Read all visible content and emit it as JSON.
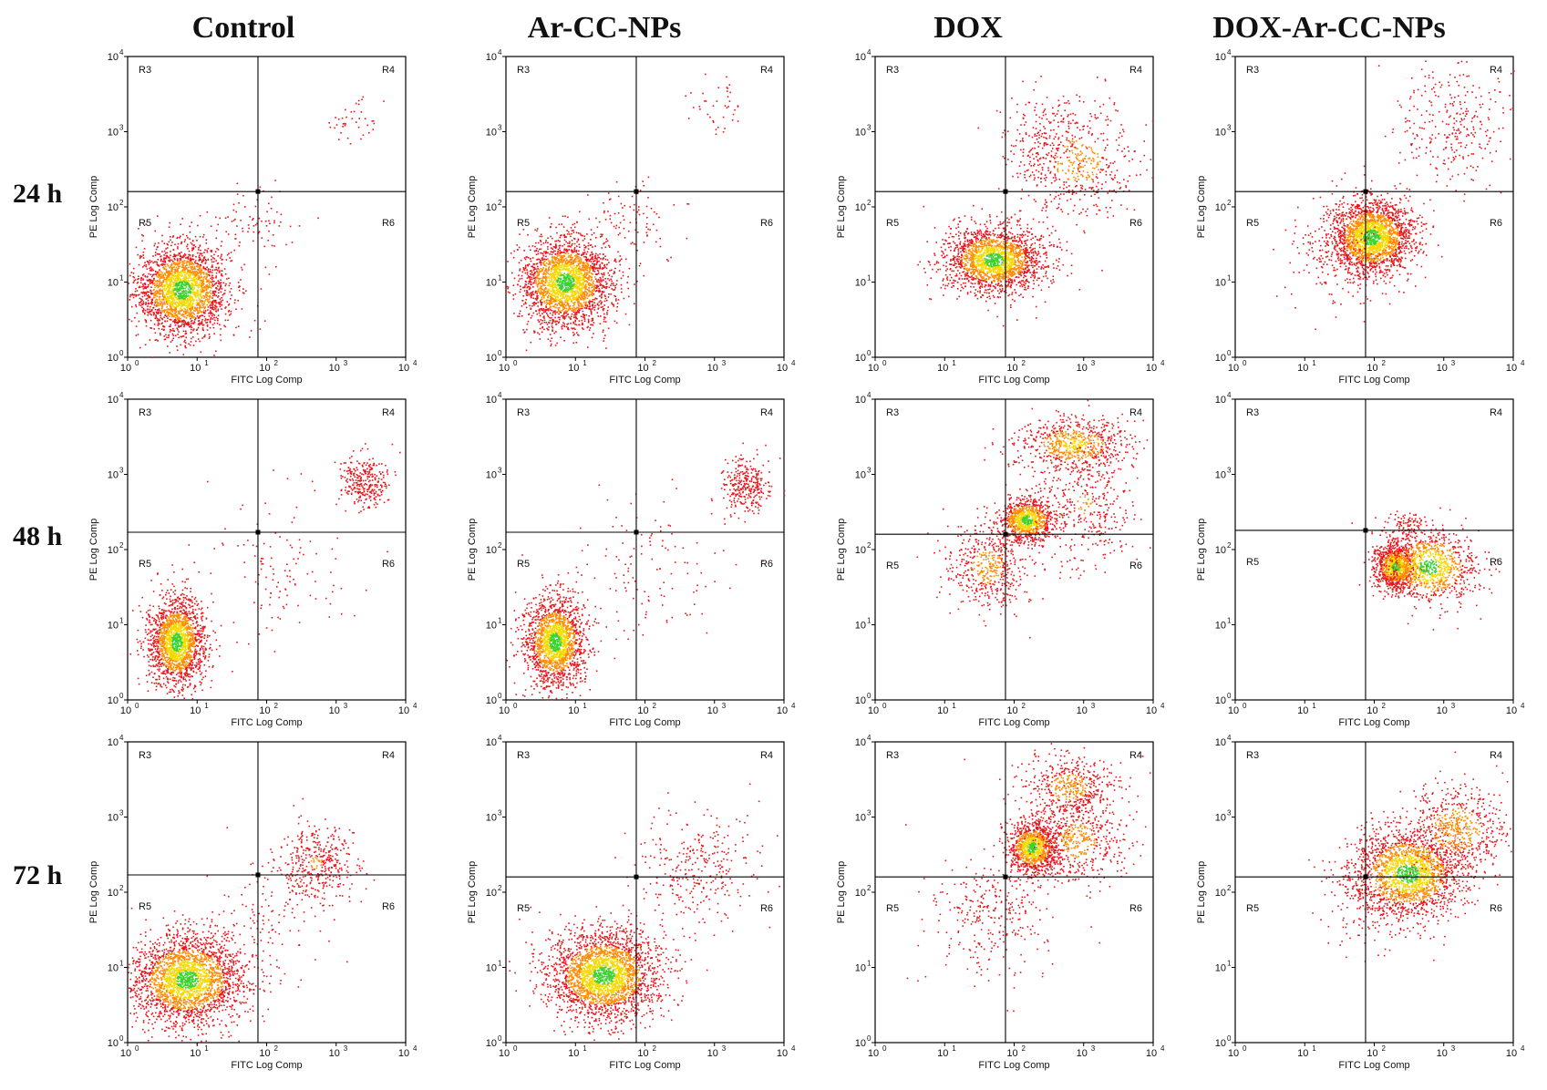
{
  "columns": [
    "Control",
    "Ar-CC-NPs",
    "DOX",
    "DOX-Ar-CC-NPs"
  ],
  "rows": [
    "24 h",
    "48 h",
    "72 h"
  ],
  "colors": {
    "low": "#e8141a",
    "mid": "#ff8a00",
    "high": "#f5d800",
    "peak": "#3bd230",
    "axis": "#000000"
  },
  "chart_data": [
    {
      "type": "scatter",
      "column": "Control",
      "row": "24 h",
      "xlabel": "FITC Log Comp",
      "ylabel": "PE Log Comp",
      "x_scale": "log",
      "y_scale": "log",
      "xlim": [
        1,
        10000
      ],
      "ylim": [
        1,
        10000
      ],
      "x_ticks": [
        "10",
        "10",
        "10",
        "10",
        "10"
      ],
      "x_tick_exponents": [
        "0",
        "1",
        "2",
        "3",
        "4"
      ],
      "y_ticks": [
        "10",
        "10",
        "10",
        "10",
        "10"
      ],
      "y_tick_exponents": [
        "0",
        "1",
        "2",
        "3",
        "4"
      ],
      "regions": [
        "R3",
        "R4",
        "R5",
        "R6"
      ],
      "quadrant_gate": {
        "x": 75,
        "y": 160
      },
      "clusters": [
        {
          "cx": 6,
          "cy": 8,
          "sx": 0.33,
          "sy": 0.3,
          "n": 2400
        },
        {
          "cx": 60,
          "cy": 60,
          "sx": 0.35,
          "sy": 0.25,
          "n": 80
        },
        {
          "cx": 1500,
          "cy": 1400,
          "sx": 0.2,
          "sy": 0.15,
          "n": 40
        }
      ]
    },
    {
      "type": "scatter",
      "column": "Ar-CC-NPs",
      "row": "24 h",
      "xlabel": "FITC Log Comp",
      "ylabel": "PE Log Comp",
      "x_scale": "log",
      "y_scale": "log",
      "xlim": [
        1,
        10000
      ],
      "ylim": [
        1,
        10000
      ],
      "x_ticks": [
        "10",
        "10",
        "10",
        "10",
        "10"
      ],
      "x_tick_exponents": [
        "0",
        "1",
        "2",
        "3",
        "4"
      ],
      "y_ticks": [
        "10",
        "10",
        "10",
        "10",
        "10"
      ],
      "y_tick_exponents": [
        "0",
        "1",
        "2",
        "3",
        "4"
      ],
      "regions": [
        "R3",
        "R4",
        "R5",
        "R6"
      ],
      "quadrant_gate": {
        "x": 75,
        "y": 160
      },
      "clusters": [
        {
          "cx": 7,
          "cy": 10,
          "sx": 0.33,
          "sy": 0.3,
          "n": 2400
        },
        {
          "cx": 60,
          "cy": 60,
          "sx": 0.35,
          "sy": 0.25,
          "n": 90
        },
        {
          "cx": 1200,
          "cy": 2000,
          "sx": 0.2,
          "sy": 0.2,
          "n": 40
        }
      ]
    },
    {
      "type": "scatter",
      "column": "DOX",
      "row": "24 h",
      "xlabel": "FITC Log Comp",
      "ylabel": "PE Log Comp",
      "x_scale": "log",
      "y_scale": "log",
      "xlim": [
        1,
        10000
      ],
      "ylim": [
        1,
        10000
      ],
      "x_ticks": [
        "10",
        "10",
        "10",
        "10",
        "10"
      ],
      "x_tick_exponents": [
        "0",
        "1",
        "2",
        "3",
        "4"
      ],
      "y_ticks": [
        "10",
        "10",
        "10",
        "10",
        "10"
      ],
      "y_tick_exponents": [
        "0",
        "1",
        "2",
        "3",
        "4"
      ],
      "regions": [
        "R3",
        "R4",
        "R5",
        "R6"
      ],
      "quadrant_gate": {
        "x": 75,
        "y": 160
      },
      "clusters": [
        {
          "cx": 50,
          "cy": 20,
          "sx": 0.35,
          "sy": 0.22,
          "n": 2000
        },
        {
          "cx": 800,
          "cy": 400,
          "sx": 0.45,
          "sy": 0.4,
          "n": 500
        },
        {
          "cx": 300,
          "cy": 800,
          "sx": 0.3,
          "sy": 0.3,
          "n": 150
        }
      ]
    },
    {
      "type": "scatter",
      "column": "DOX-Ar-CC-NPs",
      "row": "24 h",
      "xlabel": "FITC Log Comp",
      "ylabel": "PE Log Comp",
      "x_scale": "log",
      "y_scale": "log",
      "xlim": [
        1,
        10000
      ],
      "ylim": [
        1,
        10000
      ],
      "x_ticks": [
        "10",
        "10",
        "10",
        "10",
        "10"
      ],
      "x_tick_exponents": [
        "0",
        "1",
        "2",
        "3",
        "4"
      ],
      "y_ticks": [
        "10",
        "10",
        "10",
        "10",
        "10"
      ],
      "y_tick_exponents": [
        "0",
        "1",
        "2",
        "3",
        "4"
      ],
      "regions": [
        "R3",
        "R4",
        "R5",
        "R6"
      ],
      "quadrant_gate": {
        "x": 75,
        "y": 160
      },
      "clusters": [
        {
          "cx": 90,
          "cy": 40,
          "sx": 0.3,
          "sy": 0.25,
          "n": 2200
        },
        {
          "cx": 1500,
          "cy": 1200,
          "sx": 0.4,
          "sy": 0.4,
          "n": 300
        },
        {
          "cx": 30,
          "cy": 20,
          "sx": 0.4,
          "sy": 0.3,
          "n": 150
        }
      ]
    },
    {
      "type": "scatter",
      "column": "Control",
      "row": "48 h",
      "xlabel": "FITC Log Comp",
      "ylabel": "PE Log Comp",
      "x_scale": "log",
      "y_scale": "log",
      "xlim": [
        1,
        10000
      ],
      "ylim": [
        1,
        10000
      ],
      "x_ticks": [
        "10",
        "10",
        "10",
        "10",
        "10"
      ],
      "x_tick_exponents": [
        "0",
        "1",
        "2",
        "3",
        "4"
      ],
      "y_ticks": [
        "10",
        "10",
        "10",
        "10",
        "10"
      ],
      "y_tick_exponents": [
        "0",
        "1",
        "2",
        "3",
        "4"
      ],
      "regions": [
        "R3",
        "R4",
        "R5",
        "R6"
      ],
      "quadrant_gate": {
        "x": 75,
        "y": 170
      },
      "clusters": [
        {
          "cx": 5,
          "cy": 6,
          "sx": 0.2,
          "sy": 0.3,
          "n": 1800
        },
        {
          "cx": 2500,
          "cy": 800,
          "sx": 0.18,
          "sy": 0.18,
          "n": 300
        },
        {
          "cx": 150,
          "cy": 60,
          "sx": 0.5,
          "sy": 0.5,
          "n": 120
        }
      ]
    },
    {
      "type": "scatter",
      "column": "Ar-CC-NPs",
      "row": "48 h",
      "xlabel": "FITC Log Comp",
      "ylabel": "PE Log Comp",
      "x_scale": "log",
      "y_scale": "log",
      "xlim": [
        1,
        10000
      ],
      "ylim": [
        1,
        10000
      ],
      "x_ticks": [
        "10",
        "10",
        "10",
        "10",
        "10"
      ],
      "x_tick_exponents": [
        "0",
        "1",
        "2",
        "3",
        "4"
      ],
      "y_ticks": [
        "10",
        "10",
        "10",
        "10",
        "10"
      ],
      "y_tick_exponents": [
        "0",
        "1",
        "2",
        "3",
        "4"
      ],
      "regions": [
        "R3",
        "R4",
        "R5",
        "R6"
      ],
      "quadrant_gate": {
        "x": 75,
        "y": 170
      },
      "clusters": [
        {
          "cx": 5,
          "cy": 6,
          "sx": 0.22,
          "sy": 0.3,
          "n": 1800
        },
        {
          "cx": 2800,
          "cy": 700,
          "sx": 0.18,
          "sy": 0.18,
          "n": 300
        },
        {
          "cx": 150,
          "cy": 60,
          "sx": 0.5,
          "sy": 0.5,
          "n": 120
        }
      ]
    },
    {
      "type": "scatter",
      "column": "DOX",
      "row": "48 h",
      "xlabel": "FITC Log Comp",
      "ylabel": "PE Log Comp",
      "x_scale": "log",
      "y_scale": "log",
      "xlim": [
        1,
        10000
      ],
      "ylim": [
        1,
        10000
      ],
      "x_ticks": [
        "10",
        "10",
        "10",
        "10",
        "10"
      ],
      "x_tick_exponents": [
        "0",
        "1",
        "2",
        "3",
        "4"
      ],
      "y_ticks": [
        "10",
        "10",
        "10",
        "10",
        "10"
      ],
      "y_tick_exponents": [
        "0",
        "1",
        "2",
        "3",
        "4"
      ],
      "regions": [
        "R3",
        "R4",
        "R5",
        "R6"
      ],
      "quadrant_gate": {
        "x": 75,
        "y": 160
      },
      "clusters": [
        {
          "cx": 150,
          "cy": 250,
          "sx": 0.2,
          "sy": 0.15,
          "n": 900
        },
        {
          "cx": 700,
          "cy": 2500,
          "sx": 0.4,
          "sy": 0.18,
          "n": 700
        },
        {
          "cx": 40,
          "cy": 60,
          "sx": 0.3,
          "sy": 0.3,
          "n": 500
        },
        {
          "cx": 1000,
          "cy": 400,
          "sx": 0.4,
          "sy": 0.4,
          "n": 400
        }
      ]
    },
    {
      "type": "scatter",
      "column": "DOX-Ar-CC-NPs",
      "row": "48 h",
      "xlabel": "FITC Log Comp",
      "ylabel": "PE Log Comp",
      "x_scale": "log",
      "y_scale": "log",
      "xlim": [
        1,
        10000
      ],
      "ylim": [
        1,
        10000
      ],
      "x_ticks": [
        "10",
        "10",
        "10",
        "10",
        "10"
      ],
      "x_tick_exponents": [
        "0",
        "1",
        "2",
        "3",
        "4"
      ],
      "y_ticks": [
        "10",
        "10",
        "10",
        "10",
        "10"
      ],
      "y_tick_exponents": [
        "0",
        "1",
        "2",
        "3",
        "4"
      ],
      "regions": [
        "R3",
        "R4",
        "R5",
        "R6"
      ],
      "quadrant_gate": {
        "x": 75,
        "y": 180
      },
      "clusters": [
        {
          "cx": 200,
          "cy": 60,
          "sx": 0.15,
          "sy": 0.15,
          "n": 900
        },
        {
          "cx": 600,
          "cy": 60,
          "sx": 0.35,
          "sy": 0.25,
          "n": 1000
        },
        {
          "cx": 300,
          "cy": 220,
          "sx": 0.15,
          "sy": 0.1,
          "n": 80
        }
      ]
    },
    {
      "type": "scatter",
      "column": "Control",
      "row": "72 h",
      "xlabel": "FITC Log Comp",
      "ylabel": "PE Log Comp",
      "x_scale": "log",
      "y_scale": "log",
      "xlim": [
        1,
        10000
      ],
      "ylim": [
        1,
        10000
      ],
      "x_ticks": [
        "10",
        "10",
        "10",
        "10",
        "10"
      ],
      "x_tick_exponents": [
        "0",
        "1",
        "2",
        "3",
        "4"
      ],
      "y_ticks": [
        "10",
        "10",
        "10",
        "10",
        "10"
      ],
      "y_tick_exponents": [
        "0",
        "1",
        "2",
        "3",
        "4"
      ],
      "regions": [
        "R3",
        "R4",
        "R5",
        "R6"
      ],
      "quadrant_gate": {
        "x": 75,
        "y": 170
      },
      "clusters": [
        {
          "cx": 7,
          "cy": 7,
          "sx": 0.4,
          "sy": 0.3,
          "n": 2500
        },
        {
          "cx": 500,
          "cy": 250,
          "sx": 0.3,
          "sy": 0.25,
          "n": 400
        },
        {
          "cx": 100,
          "cy": 40,
          "sx": 0.4,
          "sy": 0.4,
          "n": 120
        }
      ]
    },
    {
      "type": "scatter",
      "column": "Ar-CC-NPs",
      "row": "72 h",
      "xlabel": "FITC Log Comp",
      "ylabel": "PE Log Comp",
      "x_scale": "log",
      "y_scale": "log",
      "xlim": [
        1,
        10000
      ],
      "ylim": [
        1,
        10000
      ],
      "x_ticks": [
        "10",
        "10",
        "10",
        "10",
        "10"
      ],
      "x_tick_exponents": [
        "0",
        "1",
        "2",
        "3",
        "4"
      ],
      "y_ticks": [
        "10",
        "10",
        "10",
        "10",
        "10"
      ],
      "y_tick_exponents": [
        "0",
        "1",
        "2",
        "3",
        "4"
      ],
      "regions": [
        "R3",
        "R4",
        "R5",
        "R6"
      ],
      "quadrant_gate": {
        "x": 75,
        "y": 160
      },
      "clusters": [
        {
          "cx": 25,
          "cy": 8,
          "sx": 0.4,
          "sy": 0.3,
          "n": 2600
        },
        {
          "cx": 500,
          "cy": 200,
          "sx": 0.45,
          "sy": 0.4,
          "n": 300
        }
      ]
    },
    {
      "type": "scatter",
      "column": "DOX",
      "row": "72 h",
      "xlabel": "FITC Log Comp",
      "ylabel": "PE Log Comp",
      "x_scale": "log",
      "y_scale": "log",
      "xlim": [
        1,
        10000
      ],
      "ylim": [
        1,
        10000
      ],
      "x_ticks": [
        "10",
        "10",
        "10",
        "10",
        "10"
      ],
      "x_tick_exponents": [
        "0",
        "1",
        "2",
        "3",
        "4"
      ],
      "y_ticks": [
        "10",
        "10",
        "10",
        "10",
        "10"
      ],
      "y_tick_exponents": [
        "0",
        "1",
        "2",
        "3",
        "4"
      ],
      "regions": [
        "R3",
        "R4",
        "R5",
        "R6"
      ],
      "quadrant_gate": {
        "x": 75,
        "y": 160
      },
      "clusters": [
        {
          "cx": 180,
          "cy": 400,
          "sx": 0.18,
          "sy": 0.17,
          "n": 1100
        },
        {
          "cx": 600,
          "cy": 2500,
          "sx": 0.35,
          "sy": 0.25,
          "n": 500
        },
        {
          "cx": 800,
          "cy": 500,
          "sx": 0.35,
          "sy": 0.3,
          "n": 500
        },
        {
          "cx": 40,
          "cy": 50,
          "sx": 0.45,
          "sy": 0.4,
          "n": 300
        }
      ]
    },
    {
      "type": "scatter",
      "column": "DOX-Ar-CC-NPs",
      "row": "72 h",
      "xlabel": "FITC Log Comp",
      "ylabel": "PE Log Comp",
      "x_scale": "log",
      "y_scale": "log",
      "xlim": [
        1,
        10000
      ],
      "ylim": [
        1,
        10000
      ],
      "x_ticks": [
        "10",
        "10",
        "10",
        "10",
        "10"
      ],
      "x_tick_exponents": [
        "0",
        "1",
        "2",
        "3",
        "4"
      ],
      "y_ticks": [
        "10",
        "10",
        "10",
        "10",
        "10"
      ],
      "y_tick_exponents": [
        "0",
        "1",
        "2",
        "3",
        "4"
      ],
      "regions": [
        "R3",
        "R4",
        "R5",
        "R6"
      ],
      "quadrant_gate": {
        "x": 75,
        "y": 160
      },
      "clusters": [
        {
          "cx": 300,
          "cy": 180,
          "sx": 0.4,
          "sy": 0.3,
          "n": 2000
        },
        {
          "cx": 1500,
          "cy": 700,
          "sx": 0.35,
          "sy": 0.3,
          "n": 600
        },
        {
          "cx": 80,
          "cy": 60,
          "sx": 0.3,
          "sy": 0.3,
          "n": 100
        }
      ]
    }
  ]
}
